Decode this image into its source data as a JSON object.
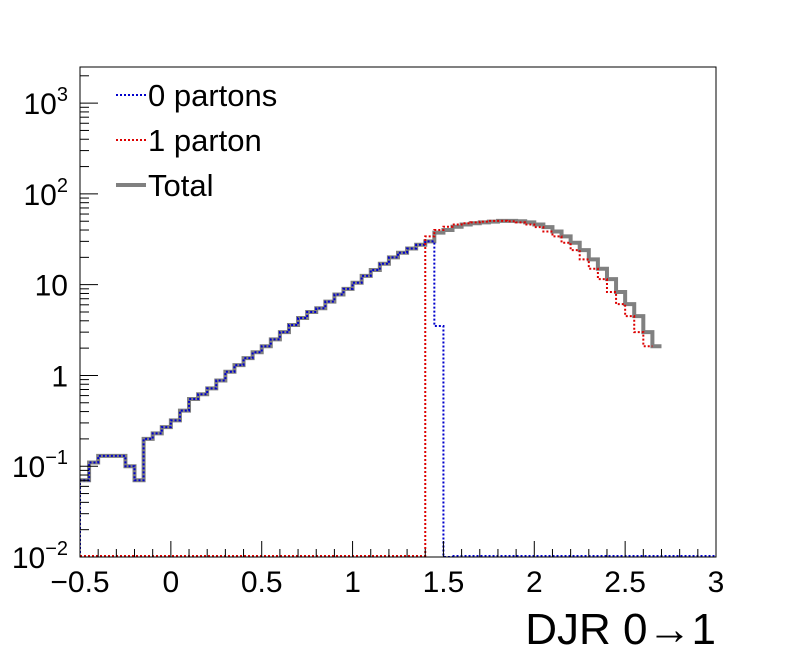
{
  "chart_data": {
    "type": "line",
    "step": true,
    "xlabel": "DJR 0→1",
    "ylabel": "",
    "xlim": [
      -0.5,
      3.0
    ],
    "ylim": [
      0.01,
      2500
    ],
    "y_scale": "log",
    "grid": false,
    "legend_placement": "top-left",
    "x_ticks": [
      -0.5,
      0,
      0.5,
      1,
      1.5,
      2,
      2.5,
      3
    ],
    "x_tick_labels": [
      "−0.5",
      "0",
      "0.5",
      "1",
      "1.5",
      "2",
      "2.5",
      "3"
    ],
    "y_ticks": [
      {
        "value": 0.01,
        "base": "10",
        "exp": "−2"
      },
      {
        "value": 0.1,
        "base": "10",
        "exp": "−1"
      },
      {
        "value": 1,
        "base": "1",
        "exp": ""
      },
      {
        "value": 10,
        "base": "10",
        "exp": ""
      },
      {
        "value": 100,
        "base": "10",
        "exp": "2"
      },
      {
        "value": 1000,
        "base": "10",
        "exp": "3"
      }
    ],
    "bin_width": 0.05,
    "series": [
      {
        "name": "0 partons",
        "color": "#0000cc",
        "style": "dotted",
        "x_start": -0.5,
        "values": [
          0.07,
          0.11,
          0.13,
          0.13,
          0.13,
          0.1,
          0.07,
          0.2,
          0.23,
          0.27,
          0.32,
          0.41,
          0.55,
          0.62,
          0.72,
          0.88,
          1.1,
          1.3,
          1.55,
          1.8,
          2.1,
          2.5,
          3.0,
          3.6,
          4.3,
          5.0,
          5.5,
          6.5,
          7.8,
          9.0,
          10.5,
          12.5,
          14.5,
          17.0,
          20.0,
          22.5,
          25.0,
          27.5,
          30.0,
          3.5,
          0.01
        ]
      },
      {
        "name": "1 parton",
        "color": "#dd0000",
        "style": "dotted",
        "x_start": 1.4,
        "values": [
          34.0,
          40.0,
          43.5,
          46.0,
          47.5,
          48.5,
          49.5,
          50.5,
          50.5,
          50.0,
          48.5,
          46.0,
          43.0,
          38.5,
          34.0,
          29.0,
          24.0,
          19.0,
          15.0,
          11.5,
          8.3,
          6.1,
          4.5,
          3.0,
          2.1
        ]
      },
      {
        "name": "Total",
        "color": "#808080",
        "style": "solid",
        "x_start": -0.5,
        "values": [
          0.07,
          0.11,
          0.13,
          0.13,
          0.13,
          0.1,
          0.07,
          0.2,
          0.23,
          0.27,
          0.32,
          0.41,
          0.55,
          0.62,
          0.72,
          0.88,
          1.1,
          1.3,
          1.55,
          1.8,
          2.1,
          2.5,
          3.0,
          3.6,
          4.3,
          5.0,
          5.5,
          6.5,
          7.8,
          9.0,
          10.5,
          12.5,
          14.5,
          17.0,
          20.0,
          22.5,
          25.0,
          27.5,
          30.0,
          37.5,
          40.0,
          43.5,
          46.0,
          47.5,
          48.5,
          49.5,
          50.5,
          50.5,
          50.0,
          48.5,
          46.0,
          43.0,
          38.5,
          34.0,
          29.0,
          24.0,
          19.0,
          15.0,
          11.5,
          8.3,
          6.1,
          4.5,
          3.0,
          2.1
        ]
      }
    ]
  }
}
